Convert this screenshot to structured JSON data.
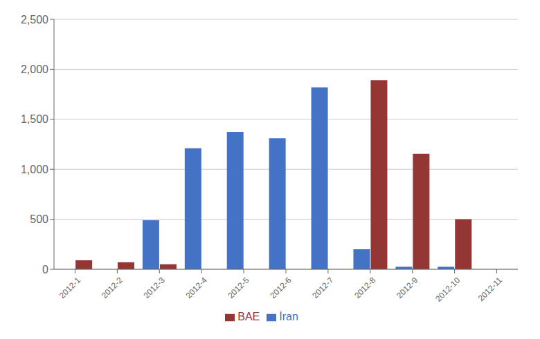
{
  "chart_data": {
    "type": "bar",
    "categories": [
      "2012-1",
      "2012-2",
      "2012-3",
      "2012-4",
      "2012-5",
      "2012-6",
      "2012-7",
      "2012-8",
      "2012-9",
      "2012-10",
      "2012-11"
    ],
    "series": [
      {
        "name": "İran",
        "color": "#4472C4",
        "values": [
          0,
          0,
          490,
          1210,
          1375,
          1310,
          1820,
          200,
          25,
          25,
          0
        ]
      },
      {
        "name": "BAE",
        "color": "#943634",
        "values": [
          90,
          70,
          50,
          0,
          0,
          0,
          0,
          1890,
          1155,
          500,
          0
        ]
      }
    ],
    "ylim": [
      0,
      2500
    ],
    "yticks": [
      0,
      500,
      {
        "value": 1000,
        "label": "1,000"
      },
      {
        "value": 1500,
        "label": "1,500"
      },
      {
        "value": 2000,
        "label": "2,000"
      },
      {
        "value": 2500,
        "label": "2,500"
      }
    ],
    "grid": true,
    "legend": "bottom"
  }
}
